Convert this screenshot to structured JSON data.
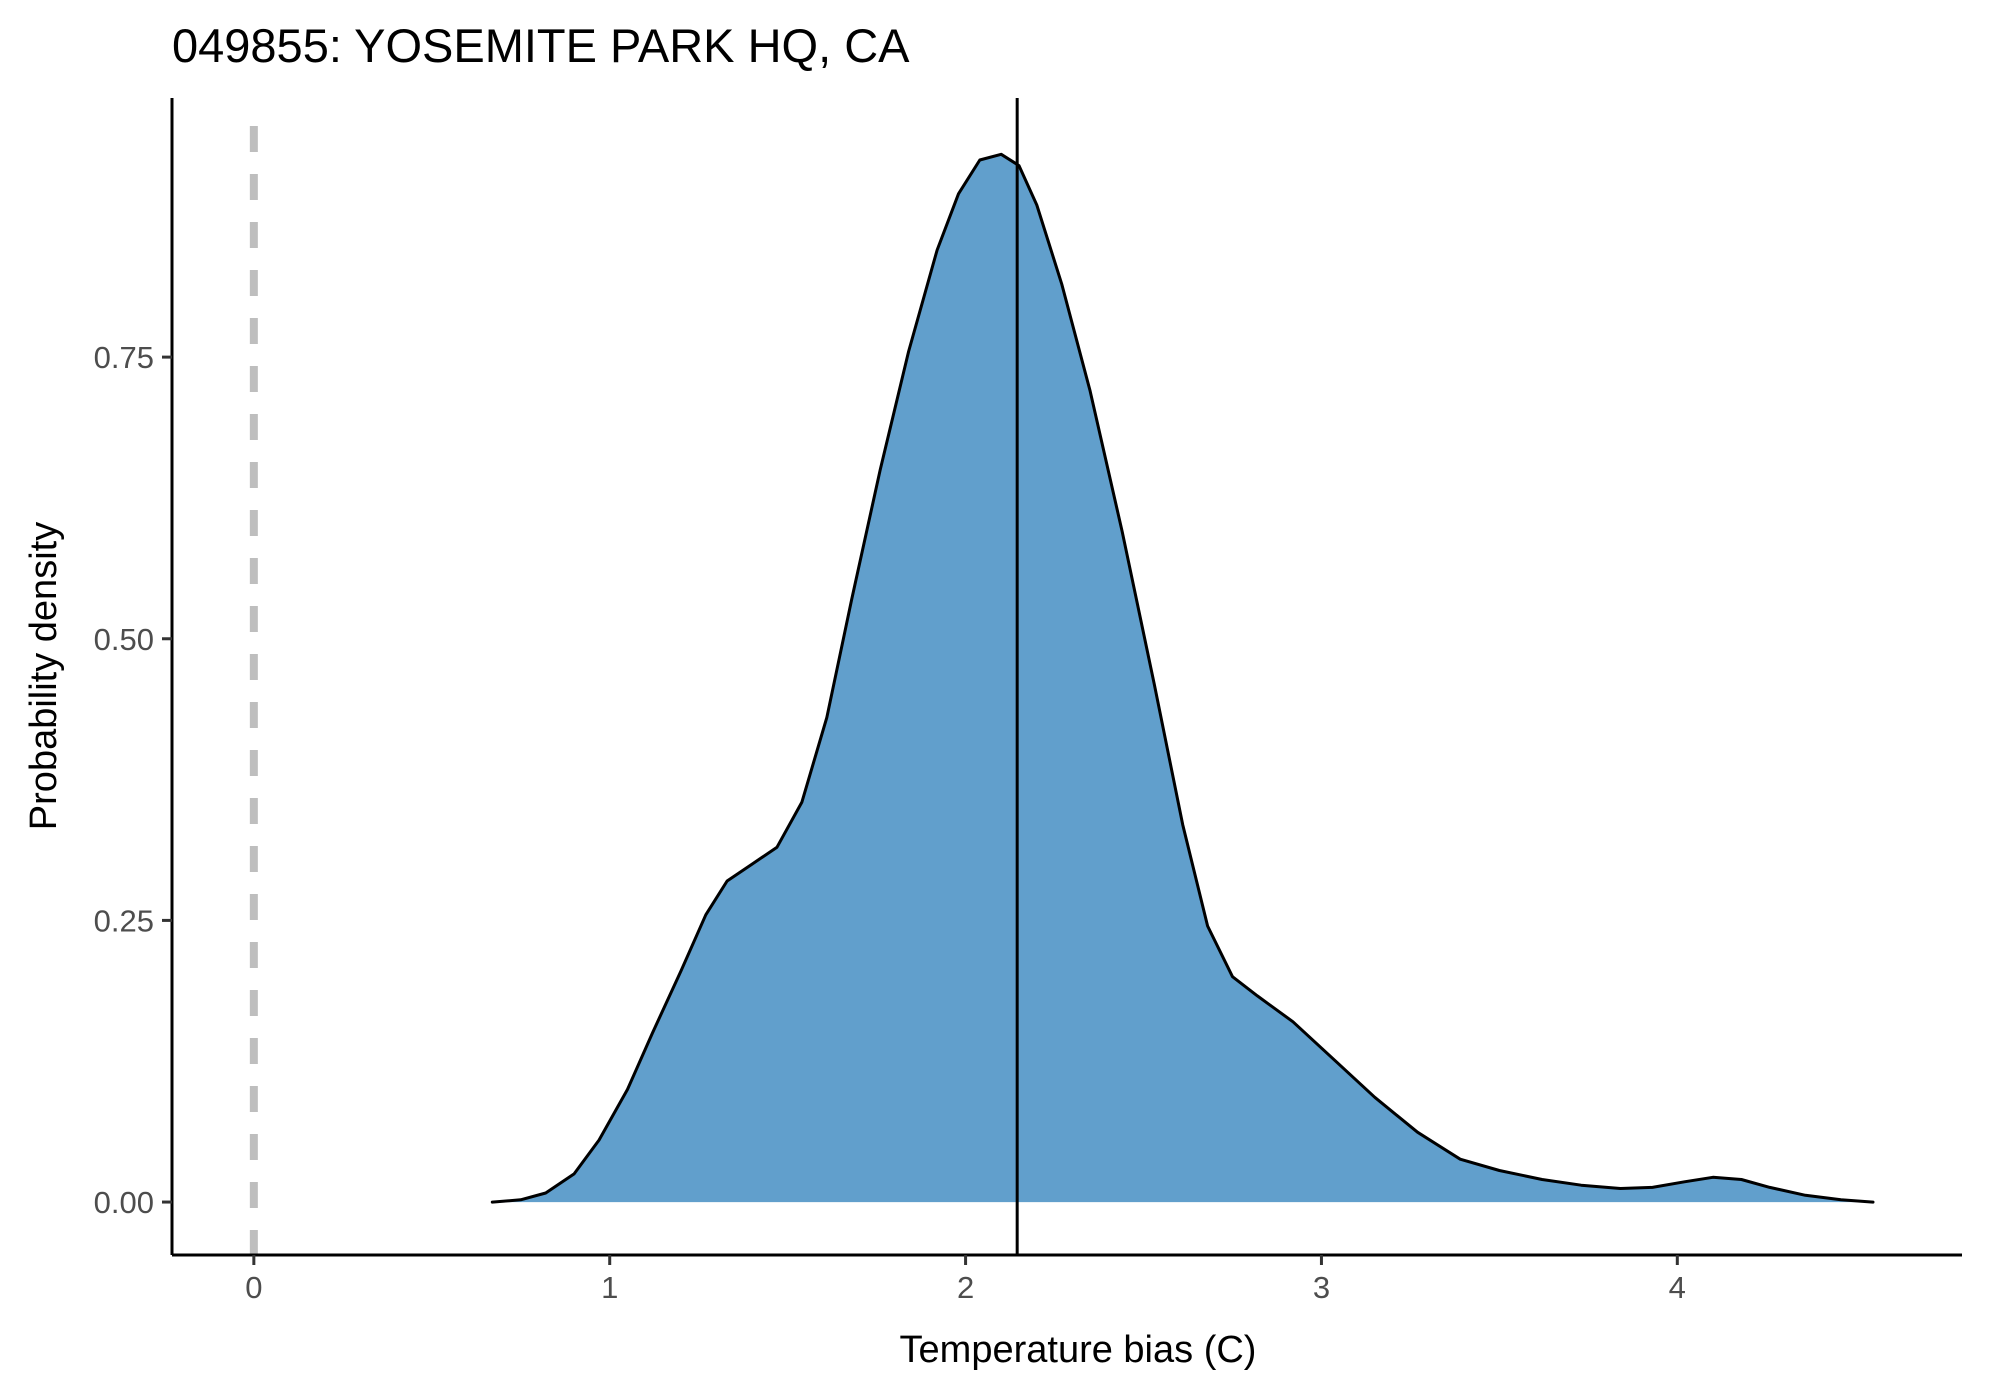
{
  "chart_data": {
    "type": "area",
    "title": "049855: YOSEMITE PARK HQ, CA",
    "xlabel": "Temperature bias (C)",
    "ylabel": "Probability density",
    "xlim": [
      -0.23,
      4.8
    ],
    "ylim": [
      -0.047,
      0.98
    ],
    "x_ticks": [
      0,
      1,
      2,
      3,
      4
    ],
    "x_tick_labels": [
      "0",
      "1",
      "2",
      "3",
      "4"
    ],
    "y_ticks": [
      0,
      0.25,
      0.5,
      0.75
    ],
    "y_tick_labels": [
      "0.00",
      "0.25",
      "0.50",
      "0.75"
    ],
    "grid": false,
    "legend": "none",
    "fill_color": "#619fcc",
    "line_color": "#000000",
    "reference_line_color": "#bebebe",
    "series": [
      {
        "x": [
          0.67,
          0.75,
          0.82,
          0.9,
          0.97,
          1.05,
          1.12,
          1.2,
          1.27,
          1.33,
          1.4,
          1.47,
          1.54,
          1.61,
          1.68,
          1.76,
          1.84,
          1.92,
          1.98,
          2.04,
          2.1,
          2.15,
          2.2,
          2.27,
          2.35,
          2.44,
          2.53,
          2.61,
          2.68,
          2.75,
          2.82,
          2.92,
          3.04,
          3.15,
          3.27,
          3.39,
          3.5,
          3.62,
          3.73,
          3.84,
          3.93,
          4.02,
          4.1,
          4.18,
          4.26,
          4.36,
          4.46,
          4.55
        ],
        "y": [
          0.0,
          0.002,
          0.008,
          0.025,
          0.055,
          0.1,
          0.15,
          0.205,
          0.255,
          0.285,
          0.3,
          0.315,
          0.355,
          0.43,
          0.535,
          0.65,
          0.755,
          0.845,
          0.895,
          0.925,
          0.93,
          0.92,
          0.885,
          0.815,
          0.72,
          0.595,
          0.46,
          0.335,
          0.245,
          0.2,
          0.183,
          0.16,
          0.125,
          0.093,
          0.062,
          0.038,
          0.028,
          0.02,
          0.015,
          0.012,
          0.013,
          0.018,
          0.022,
          0.02,
          0.013,
          0.006,
          0.002,
          0.0
        ]
      }
    ],
    "reference_lines": [
      {
        "x": 0,
        "style": "dashed"
      },
      {
        "x": 2.145,
        "style": "solid"
      }
    ]
  }
}
